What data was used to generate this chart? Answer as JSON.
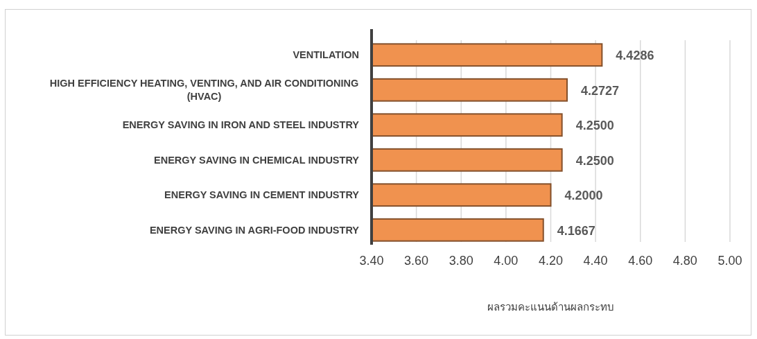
{
  "chart_data": {
    "type": "bar",
    "orientation": "horizontal",
    "categories": [
      "VENTILATION",
      "HIGH EFFICIENCY HEATING, VENTING, AND AIR CONDITIONING (HVAC)",
      "ENERGY SAVING IN IRON AND STEEL INDUSTRY",
      "ENERGY SAVING IN CHEMICAL INDUSTRY",
      "ENERGY SAVING IN CEMENT INDUSTRY",
      "ENERGY SAVING IN AGRI-FOOD INDUSTRY"
    ],
    "values": [
      4.4286,
      4.2727,
      4.25,
      4.25,
      4.2,
      4.1667
    ],
    "value_labels": [
      "4.4286",
      "4.2727",
      "4.2500",
      "4.2500",
      "4.2000",
      "4.1667"
    ],
    "color": "#f0924f",
    "xlim": [
      3.4,
      5.0
    ],
    "xticks": [
      {
        "value": 3.4,
        "label": "3.40"
      },
      {
        "value": 3.6,
        "label": "3.60"
      },
      {
        "value": 3.8,
        "label": "3.80"
      },
      {
        "value": 4.0,
        "label": "4.00"
      },
      {
        "value": 4.2,
        "label": "4.20"
      },
      {
        "value": 4.4,
        "label": "4.40"
      },
      {
        "value": 4.6,
        "label": "4.60"
      },
      {
        "value": 4.8,
        "label": "4.80"
      },
      {
        "value": 5.0,
        "label": "5.00"
      }
    ],
    "xlabel": "ผลรวมคะแนนด้านผลกระทบ",
    "grid": "x"
  }
}
